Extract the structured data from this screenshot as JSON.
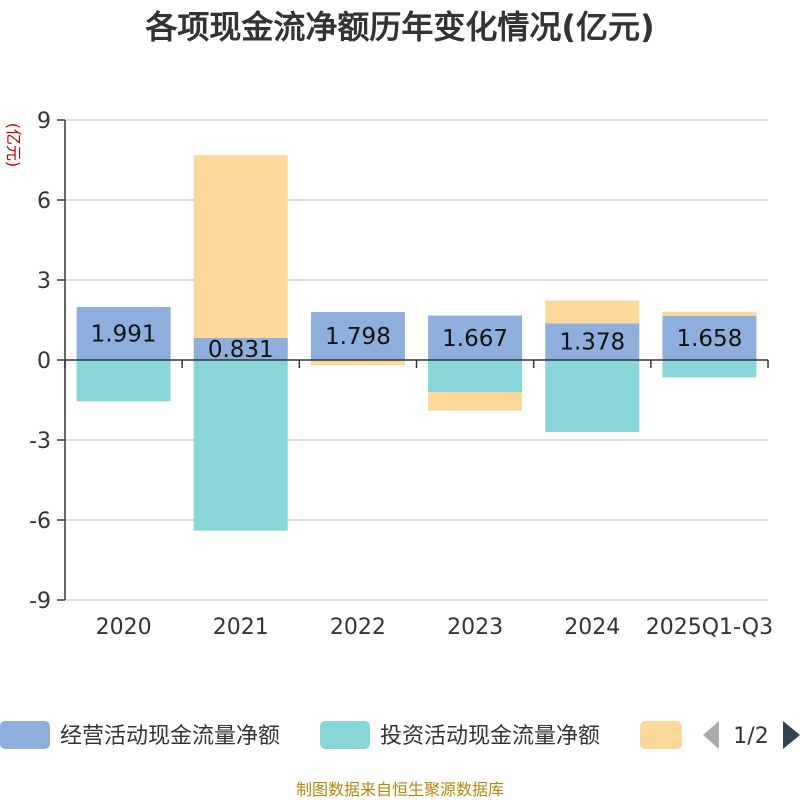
{
  "chart_data": {
    "type": "bar",
    "stacked": true,
    "title": "各项现金流净额历年变化情况(亿元)",
    "ylabel": "(亿元)",
    "xlabel": "",
    "ylim": [
      -9,
      9
    ],
    "yticks": [
      9,
      6,
      3,
      0,
      -3,
      -6,
      -9
    ],
    "categories": [
      "2020",
      "2021",
      "2022",
      "2023",
      "2024",
      "2025Q1-Q3"
    ],
    "series": [
      {
        "name": "经营活动现金流量净额",
        "color": "#8eaedc",
        "values": [
          1.991,
          0.831,
          1.798,
          1.667,
          1.378,
          1.658
        ],
        "show_labels": true
      },
      {
        "name": "投资活动现金流量净额",
        "color": "#88d6d8",
        "values": [
          -1.55,
          -6.4,
          0.0,
          -1.2,
          -2.7,
          -0.65
        ],
        "show_labels": false
      },
      {
        "name": "",
        "color": "#fcd89a",
        "values": [
          0.0,
          6.85,
          -0.2,
          -0.7,
          0.85,
          0.15
        ],
        "show_labels": false
      }
    ],
    "legend": {
      "position": "bottom",
      "page": "1/2"
    },
    "source_note": "制图数据来自恒生聚源数据库"
  }
}
